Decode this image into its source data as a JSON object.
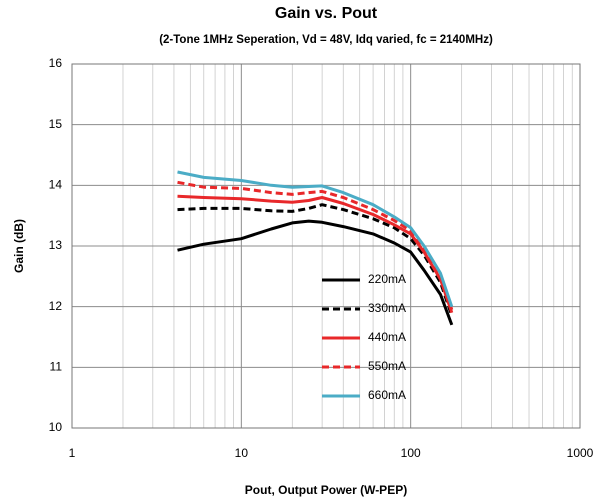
{
  "chart_data": {
    "type": "line",
    "title": "Gain vs. Pout",
    "subtitle": "(2-Tone 1MHz Seperation, Vd = 48V, Idq varied, fc = 2140MHz)",
    "x_label": "Pout, Output Power (W-PEP)",
    "y_label": "Gain (dB)",
    "x": [
      4.2,
      6,
      10,
      15,
      20,
      25,
      30,
      40,
      60,
      80,
      100,
      120,
      150,
      175
    ],
    "series": [
      {
        "name": "220mA",
        "color": "#000000",
        "dash": false,
        "values": [
          12.93,
          13.03,
          13.12,
          13.28,
          13.38,
          13.41,
          13.39,
          13.32,
          13.2,
          13.05,
          12.9,
          12.6,
          12.2,
          11.7
        ]
      },
      {
        "name": "330mA",
        "color": "#000000",
        "dash": true,
        "values": [
          13.6,
          13.62,
          13.62,
          13.58,
          13.57,
          13.62,
          13.68,
          13.6,
          13.45,
          13.3,
          13.12,
          12.85,
          12.4,
          11.85
        ]
      },
      {
        "name": "440mA",
        "color": "#e8282a",
        "dash": false,
        "values": [
          13.82,
          13.8,
          13.78,
          13.74,
          13.72,
          13.75,
          13.8,
          13.7,
          13.52,
          13.35,
          13.2,
          12.9,
          12.45,
          11.9
        ]
      },
      {
        "name": "550mA",
        "color": "#e8282a",
        "dash": true,
        "values": [
          14.05,
          13.97,
          13.95,
          13.88,
          13.85,
          13.88,
          13.9,
          13.8,
          13.6,
          13.42,
          13.25,
          12.95,
          12.5,
          11.95
        ]
      },
      {
        "name": "660mA",
        "color": "#4bacc6",
        "dash": false,
        "values": [
          14.22,
          14.13,
          14.08,
          14.0,
          13.97,
          13.98,
          13.99,
          13.88,
          13.68,
          13.48,
          13.3,
          13.0,
          12.55,
          12.0
        ]
      }
    ],
    "xlim": [
      1,
      1000
    ],
    "xticks": [
      1,
      10,
      100,
      1000
    ],
    "xscale": "log",
    "ylim": [
      10,
      16
    ],
    "yticks": [
      10,
      11,
      12,
      13,
      14,
      15,
      16
    ],
    "grid": true,
    "minor_grid": true,
    "legend": "center"
  }
}
